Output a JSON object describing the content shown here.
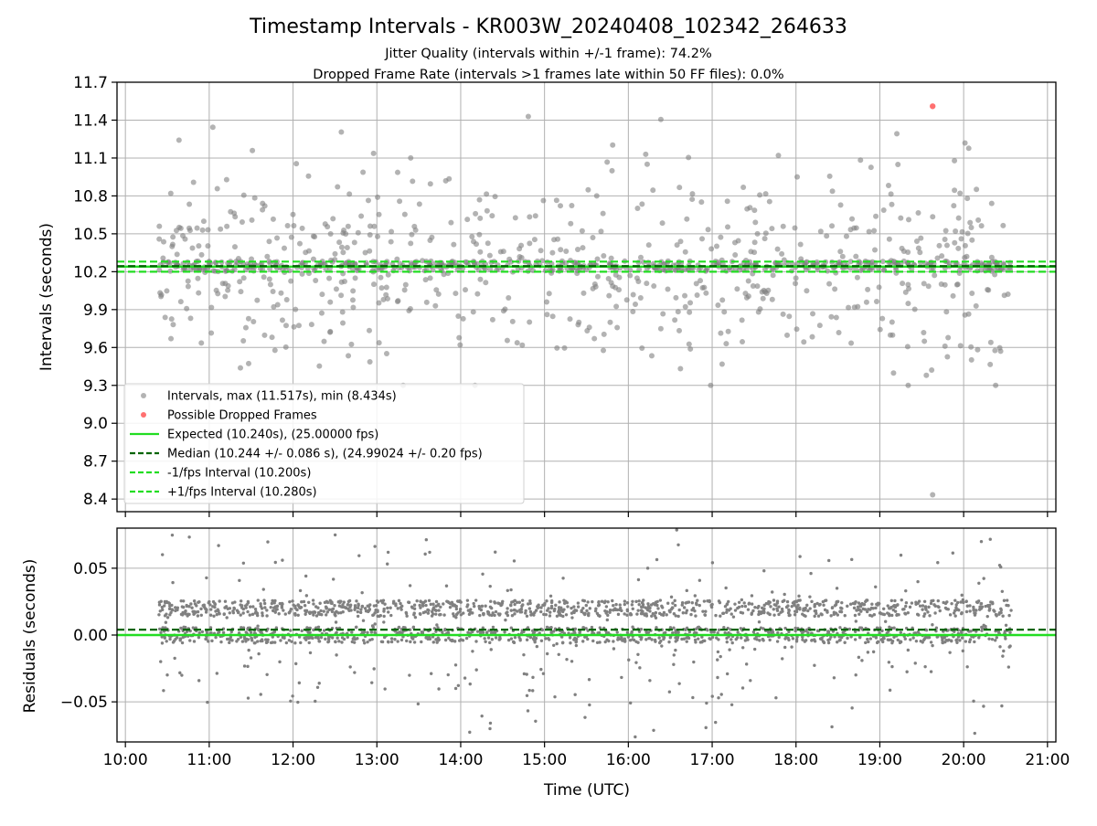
{
  "figure": {
    "title": "Timestamp Intervals - KR003W_20240408_102342_264633",
    "subtitle_1": "Jitter Quality (intervals within +/-1 frame): 74.2%",
    "subtitle_2": "Dropped Frame Rate (intervals >1 frames late within 50 FF files): 0.0%"
  },
  "colors": {
    "intervals": "#808080",
    "dropped": "#ff4040",
    "expected": "#22dd22",
    "median": "#006400",
    "interval_bounds": "#22dd22",
    "grid": "#b0b0b0"
  },
  "chart_data": [
    {
      "type": "scatter",
      "panel": "intervals",
      "ylabel": "Intervals (seconds)",
      "xlabel": "",
      "xlim": [
        9.9,
        21.1
      ],
      "ylim": [
        8.3,
        11.7
      ],
      "x_ticks": [
        10,
        11,
        12,
        13,
        14,
        15,
        16,
        17,
        18,
        19,
        20,
        21
      ],
      "y_ticks": [
        8.4,
        8.7,
        9.0,
        9.3,
        9.6,
        9.9,
        10.2,
        10.5,
        10.8,
        11.1,
        11.4,
        11.7
      ],
      "y_tick_labels": [
        "8.4",
        "8.7",
        "9.0",
        "9.3",
        "9.6",
        "9.9",
        "10.2",
        "10.5",
        "10.8",
        "11.1",
        "11.4",
        "11.7"
      ],
      "grid": true,
      "legend_position": "lower-left",
      "legend": [
        "Intervals, max (11.517s), min (8.434s)",
        "Possible Dropped Frames",
        "Expected (10.240s), (25.00000 fps)",
        "Median (10.244 +/- 0.086 s), (24.99024 +/- 0.20 fps)",
        "-1/fps Interval (10.200s)",
        "+1/fps Interval (10.280s)"
      ],
      "lines": {
        "expected": 10.24,
        "median": 10.244,
        "minus_one_frame": 10.2,
        "plus_one_frame": 10.28
      },
      "dropped_frames": [
        {
          "x": 19.63,
          "y": 11.51
        }
      ],
      "series": [
        {
          "name": "Intervals",
          "x_range": [
            10.4,
            20.57
          ],
          "min": 8.434,
          "max": 11.517,
          "center": 10.244,
          "count": 1100
        }
      ]
    },
    {
      "type": "scatter",
      "panel": "residuals",
      "ylabel": "Residuals (seconds)",
      "xlabel": "Time (UTC)",
      "xlim": [
        9.9,
        21.1
      ],
      "ylim": [
        -0.08,
        0.08
      ],
      "x_ticks": [
        10,
        11,
        12,
        13,
        14,
        15,
        16,
        17,
        18,
        19,
        20,
        21
      ],
      "x_tick_labels": [
        "10:00",
        "11:00",
        "12:00",
        "13:00",
        "14:00",
        "15:00",
        "16:00",
        "17:00",
        "18:00",
        "19:00",
        "20:00",
        "21:00"
      ],
      "y_ticks": [
        -0.05,
        0.0,
        0.05
      ],
      "y_tick_labels": [
        "−0.05",
        "0.00",
        "0.05"
      ],
      "grid": true,
      "lines": {
        "expected": 0.0,
        "median": 0.004
      },
      "series": [
        {
          "name": "Residuals",
          "x_range": [
            10.4,
            20.57
          ],
          "count": 2200
        }
      ]
    }
  ]
}
